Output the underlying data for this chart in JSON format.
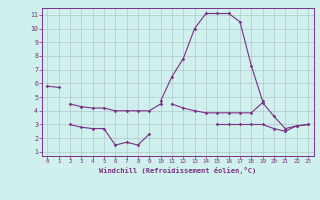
{
  "xlabel": "Windchill (Refroidissement éolien,°C)",
  "x": [
    0,
    1,
    2,
    3,
    4,
    5,
    6,
    7,
    8,
    9,
    10,
    11,
    12,
    13,
    14,
    15,
    16,
    17,
    18,
    19,
    20,
    21,
    22,
    23
  ],
  "line1": [
    5.8,
    5.7,
    null,
    null,
    null,
    null,
    null,
    null,
    null,
    null,
    4.7,
    6.5,
    7.8,
    10.0,
    11.1,
    11.1,
    11.1,
    10.5,
    7.3,
    4.7,
    null,
    null,
    null,
    null
  ],
  "line2": [
    null,
    null,
    4.5,
    4.3,
    4.2,
    4.2,
    4.0,
    4.0,
    4.0,
    4.0,
    4.5,
    null,
    null,
    null,
    null,
    null,
    null,
    null,
    null,
    null,
    null,
    null,
    null,
    null
  ],
  "line3": [
    null,
    null,
    null,
    null,
    null,
    null,
    null,
    null,
    null,
    null,
    null,
    4.5,
    4.2,
    4.0,
    3.85,
    3.85,
    3.85,
    3.85,
    3.85,
    4.6,
    3.6,
    2.7,
    2.9,
    3.0
  ],
  "line4": [
    null,
    null,
    3.0,
    2.8,
    2.7,
    2.7,
    1.5,
    1.7,
    1.5,
    2.3,
    null,
    null,
    null,
    null,
    null,
    null,
    null,
    null,
    null,
    null,
    null,
    null,
    null,
    null
  ],
  "line5": [
    null,
    null,
    null,
    null,
    null,
    null,
    null,
    null,
    null,
    null,
    null,
    null,
    null,
    null,
    null,
    3.0,
    3.0,
    3.0,
    3.0,
    3.0,
    2.7,
    2.5,
    2.9,
    3.0
  ],
  "bg_color": "#cff0ec",
  "line_color": "#7b2f86",
  "grid_color": "#aab8c0",
  "xlim": [
    -0.5,
    23.5
  ],
  "ylim": [
    0.7,
    11.5
  ],
  "yticks": [
    1,
    2,
    3,
    4,
    5,
    6,
    7,
    8,
    9,
    10,
    11
  ],
  "xticks": [
    0,
    1,
    2,
    3,
    4,
    5,
    6,
    7,
    8,
    9,
    10,
    11,
    12,
    13,
    14,
    15,
    16,
    17,
    18,
    19,
    20,
    21,
    22,
    23
  ]
}
